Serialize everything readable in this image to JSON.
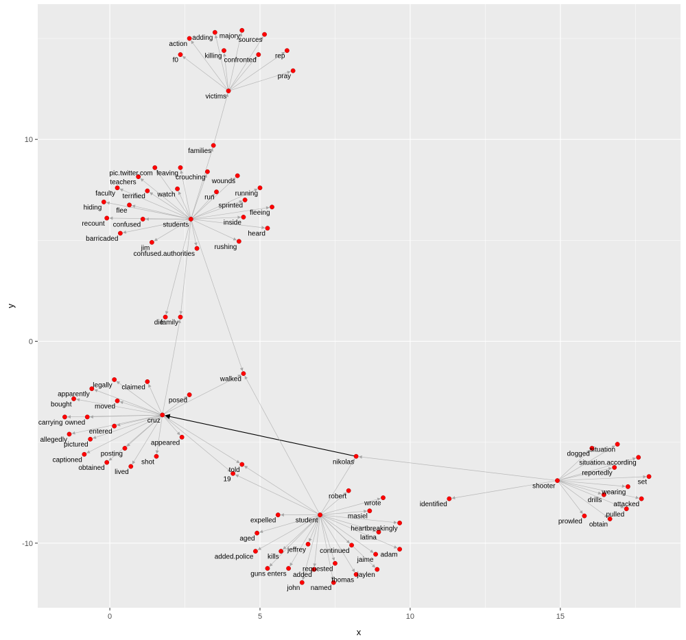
{
  "chart_data": {
    "type": "network",
    "xlabel": "x",
    "ylabel": "y",
    "xlim": [
      -2.4,
      19.0
    ],
    "ylim": [
      -13.2,
      16.7
    ],
    "x_ticks": [
      0,
      5,
      10,
      15
    ],
    "y_ticks": [
      -10,
      0,
      10
    ],
    "x_tick_labels": [
      "0",
      "5",
      "10",
      "15"
    ],
    "y_tick_labels": [
      "-10",
      "0",
      "10"
    ],
    "grid": true,
    "legend": "none",
    "colors": {
      "panel": "#EBEBEB",
      "grid_major": "#FFFFFF",
      "node": "#FF0000",
      "edge": "#A6A6A6",
      "edge_highlight": "#000000"
    },
    "nodes": [
      {
        "label": "action",
        "x": 2.65,
        "y": 15.0
      },
      {
        "label": "adding",
        "x": 3.5,
        "y": 15.3
      },
      {
        "label": "majory",
        "x": 4.4,
        "y": 15.4
      },
      {
        "label": "sources",
        "x": 5.15,
        "y": 15.2
      },
      {
        "label": "f0",
        "x": 2.35,
        "y": 14.2
      },
      {
        "label": "killing",
        "x": 3.8,
        "y": 14.4
      },
      {
        "label": "confronted",
        "x": 4.95,
        "y": 14.2
      },
      {
        "label": "rep",
        "x": 5.9,
        "y": 14.4
      },
      {
        "label": "pray",
        "x": 6.1,
        "y": 13.4
      },
      {
        "label": "victims",
        "x": 3.95,
        "y": 12.4
      },
      {
        "label": "families",
        "x": 3.45,
        "y": 9.7
      },
      {
        "label": "pic.twitter.com",
        "x": 1.5,
        "y": 8.6
      },
      {
        "label": "leaving",
        "x": 2.35,
        "y": 8.6
      },
      {
        "label": "crouching",
        "x": 3.25,
        "y": 8.4
      },
      {
        "label": "wounds",
        "x": 4.25,
        "y": 8.2
      },
      {
        "label": "teachers",
        "x": 0.95,
        "y": 8.15
      },
      {
        "label": "faculty",
        "x": 0.25,
        "y": 7.6
      },
      {
        "label": "terrified",
        "x": 1.25,
        "y": 7.45
      },
      {
        "label": "watch",
        "x": 2.25,
        "y": 7.55
      },
      {
        "label": "run",
        "x": 3.55,
        "y": 7.4
      },
      {
        "label": "running",
        "x": 5.0,
        "y": 7.6
      },
      {
        "label": "sprinted",
        "x": 4.5,
        "y": 7.0
      },
      {
        "label": "hiding",
        "x": -0.2,
        "y": 6.9
      },
      {
        "label": "flee",
        "x": 0.65,
        "y": 6.75
      },
      {
        "label": "fleeing",
        "x": 5.4,
        "y": 6.65
      },
      {
        "label": "recount",
        "x": -0.1,
        "y": 6.1
      },
      {
        "label": "confused",
        "x": 1.1,
        "y": 6.05
      },
      {
        "label": "students",
        "x": 2.7,
        "y": 6.05
      },
      {
        "label": "inside",
        "x": 4.45,
        "y": 6.15
      },
      {
        "label": "heard",
        "x": 5.25,
        "y": 5.6
      },
      {
        "label": "barricaded",
        "x": 0.35,
        "y": 5.35
      },
      {
        "label": "jim",
        "x": 1.4,
        "y": 4.9
      },
      {
        "label": "confused.authorities",
        "x": 2.9,
        "y": 4.6
      },
      {
        "label": "rushing",
        "x": 4.3,
        "y": 4.95
      },
      {
        "label": "die",
        "x": 1.85,
        "y": 1.2
      },
      {
        "label": "family",
        "x": 2.35,
        "y": 1.2
      },
      {
        "label": "walked",
        "x": 4.45,
        "y": -1.6
      },
      {
        "label": "legally",
        "x": 0.15,
        "y": -1.9
      },
      {
        "label": "claimed",
        "x": 1.25,
        "y": -2.0
      },
      {
        "label": "apparently",
        "x": -0.6,
        "y": -2.35
      },
      {
        "label": "posed",
        "x": 2.65,
        "y": -2.65
      },
      {
        "label": "bought",
        "x": -1.2,
        "y": -2.85
      },
      {
        "label": "moved",
        "x": 0.25,
        "y": -2.95
      },
      {
        "label": "carrying",
        "x": -1.5,
        "y": -3.75
      },
      {
        "label": "owned",
        "x": -0.75,
        "y": -3.75
      },
      {
        "label": "cruz",
        "x": 1.75,
        "y": -3.65
      },
      {
        "label": "entered",
        "x": 0.15,
        "y": -4.2
      },
      {
        "label": "allegedly",
        "x": -1.35,
        "y": -4.6
      },
      {
        "label": "pictured",
        "x": -0.65,
        "y": -4.85
      },
      {
        "label": "appeared",
        "x": 2.4,
        "y": -4.75
      },
      {
        "label": "posting",
        "x": 0.5,
        "y": -5.3
      },
      {
        "label": "captioned",
        "x": -0.85,
        "y": -5.6
      },
      {
        "label": "shot",
        "x": 1.55,
        "y": -5.7
      },
      {
        "label": "obtained",
        "x": -0.1,
        "y": -6.0
      },
      {
        "label": "lived",
        "x": 0.7,
        "y": -6.2
      },
      {
        "label": "told",
        "x": 4.4,
        "y": -6.1
      },
      {
        "label": "19",
        "x": 4.1,
        "y": -6.55
      },
      {
        "label": "nikolas",
        "x": 8.2,
        "y": -5.7
      },
      {
        "label": "situation",
        "x": 16.9,
        "y": -5.1
      },
      {
        "label": "dogged",
        "x": 16.05,
        "y": -5.3
      },
      {
        "label": "situation.according",
        "x": 17.6,
        "y": -5.75
      },
      {
        "label": "reportedly",
        "x": 16.8,
        "y": -6.25
      },
      {
        "label": "shooter",
        "x": 14.9,
        "y": -6.9
      },
      {
        "label": "set",
        "x": 17.95,
        "y": -6.7
      },
      {
        "label": "wearing",
        "x": 17.25,
        "y": -7.2
      },
      {
        "label": "drills",
        "x": 16.45,
        "y": -7.6
      },
      {
        "label": "attacked",
        "x": 17.7,
        "y": -7.8
      },
      {
        "label": "pulled",
        "x": 17.2,
        "y": -8.3
      },
      {
        "label": "prowled",
        "x": 15.8,
        "y": -8.65
      },
      {
        "label": "obtain",
        "x": 16.65,
        "y": -8.8
      },
      {
        "label": "robert",
        "x": 7.95,
        "y": -7.4
      },
      {
        "label": "identified",
        "x": 11.3,
        "y": -7.8
      },
      {
        "label": "wrote",
        "x": 9.1,
        "y": -7.75
      },
      {
        "label": "masiel",
        "x": 8.65,
        "y": -8.4
      },
      {
        "label": "expelled",
        "x": 5.6,
        "y": -8.6
      },
      {
        "label": "student",
        "x": 7.0,
        "y": -8.6
      },
      {
        "label": "heartbreakingly",
        "x": 9.65,
        "y": -9.0
      },
      {
        "label": "aged",
        "x": 4.9,
        "y": -9.5
      },
      {
        "label": "latina",
        "x": 8.95,
        "y": -9.45
      },
      {
        "label": "jeffrey",
        "x": 6.6,
        "y": -10.05
      },
      {
        "label": "continued",
        "x": 8.05,
        "y": -10.1
      },
      {
        "label": "adam",
        "x": 9.65,
        "y": -10.3
      },
      {
        "label": "added.police",
        "x": 4.85,
        "y": -10.4
      },
      {
        "label": "kills",
        "x": 5.7,
        "y": -10.4
      },
      {
        "label": "jaime",
        "x": 8.85,
        "y": -10.55
      },
      {
        "label": "requested",
        "x": 7.5,
        "y": -11.0
      },
      {
        "label": "guns",
        "x": 5.25,
        "y": -11.25
      },
      {
        "label": "enters",
        "x": 5.95,
        "y": -11.25
      },
      {
        "label": "added",
        "x": 6.8,
        "y": -11.3
      },
      {
        "label": "jaylen",
        "x": 8.9,
        "y": -11.3
      },
      {
        "label": "thomas",
        "x": 8.2,
        "y": -11.55
      },
      {
        "label": "john",
        "x": 6.4,
        "y": -11.95
      },
      {
        "label": "named",
        "x": 7.45,
        "y": -11.95
      }
    ],
    "edges": [
      [
        "victims",
        "action"
      ],
      [
        "victims",
        "adding"
      ],
      [
        "victims",
        "majory"
      ],
      [
        "victims",
        "sources"
      ],
      [
        "victims",
        "f0"
      ],
      [
        "victims",
        "killing"
      ],
      [
        "victims",
        "confronted"
      ],
      [
        "victims",
        "rep"
      ],
      [
        "victims",
        "pray"
      ],
      [
        "families",
        "victims"
      ],
      [
        "students",
        "families"
      ],
      [
        "students",
        "pic.twitter.com"
      ],
      [
        "students",
        "leaving"
      ],
      [
        "students",
        "crouching"
      ],
      [
        "students",
        "wounds"
      ],
      [
        "students",
        "teachers"
      ],
      [
        "students",
        "faculty"
      ],
      [
        "students",
        "terrified"
      ],
      [
        "students",
        "watch"
      ],
      [
        "students",
        "run"
      ],
      [
        "students",
        "running"
      ],
      [
        "students",
        "sprinted"
      ],
      [
        "students",
        "hiding"
      ],
      [
        "students",
        "flee"
      ],
      [
        "students",
        "fleeing"
      ],
      [
        "students",
        "recount"
      ],
      [
        "students",
        "confused"
      ],
      [
        "students",
        "inside"
      ],
      [
        "students",
        "heard"
      ],
      [
        "students",
        "barricaded"
      ],
      [
        "students",
        "jim"
      ],
      [
        "students",
        "confused.authorities"
      ],
      [
        "students",
        "rushing"
      ],
      [
        "students",
        "die"
      ],
      [
        "students",
        "family"
      ],
      [
        "students",
        "walked"
      ],
      [
        "cruz",
        "family"
      ],
      [
        "cruz",
        "legally"
      ],
      [
        "cruz",
        "claimed"
      ],
      [
        "cruz",
        "apparently"
      ],
      [
        "cruz",
        "posed"
      ],
      [
        "cruz",
        "bought"
      ],
      [
        "cruz",
        "moved"
      ],
      [
        "cruz",
        "carrying"
      ],
      [
        "cruz",
        "owned"
      ],
      [
        "cruz",
        "entered"
      ],
      [
        "cruz",
        "allegedly"
      ],
      [
        "cruz",
        "pictured"
      ],
      [
        "cruz",
        "appeared"
      ],
      [
        "cruz",
        "posting"
      ],
      [
        "cruz",
        "captioned"
      ],
      [
        "cruz",
        "shot"
      ],
      [
        "cruz",
        "obtained"
      ],
      [
        "cruz",
        "lived"
      ],
      [
        "cruz",
        "told"
      ],
      [
        "cruz",
        "19"
      ],
      [
        "cruz",
        "walked"
      ],
      [
        "nikolas",
        "cruz"
      ],
      [
        "shooter",
        "nikolas"
      ],
      [
        "shooter",
        "situation"
      ],
      [
        "shooter",
        "dogged"
      ],
      [
        "shooter",
        "situation.according"
      ],
      [
        "shooter",
        "reportedly"
      ],
      [
        "shooter",
        "set"
      ],
      [
        "shooter",
        "wearing"
      ],
      [
        "shooter",
        "drills"
      ],
      [
        "shooter",
        "attacked"
      ],
      [
        "shooter",
        "pulled"
      ],
      [
        "shooter",
        "prowled"
      ],
      [
        "shooter",
        "obtain"
      ],
      [
        "shooter",
        "identified"
      ],
      [
        "student",
        "nikolas"
      ],
      [
        "student",
        "robert"
      ],
      [
        "student",
        "wrote"
      ],
      [
        "student",
        "masiel"
      ],
      [
        "student",
        "expelled"
      ],
      [
        "student",
        "heartbreakingly"
      ],
      [
        "student",
        "aged"
      ],
      [
        "student",
        "latina"
      ],
      [
        "student",
        "jeffrey"
      ],
      [
        "student",
        "continued"
      ],
      [
        "student",
        "adam"
      ],
      [
        "student",
        "added.police"
      ],
      [
        "student",
        "kills"
      ],
      [
        "student",
        "jaime"
      ],
      [
        "student",
        "requested"
      ],
      [
        "student",
        "guns"
      ],
      [
        "student",
        "enters"
      ],
      [
        "student",
        "added"
      ],
      [
        "student",
        "jaylen"
      ],
      [
        "student",
        "thomas"
      ],
      [
        "student",
        "john"
      ],
      [
        "student",
        "named"
      ],
      [
        "student",
        "told"
      ],
      [
        "student",
        "19"
      ],
      [
        "student",
        "walked"
      ]
    ],
    "highlight_edges": [
      [
        "nikolas",
        "cruz"
      ]
    ]
  }
}
